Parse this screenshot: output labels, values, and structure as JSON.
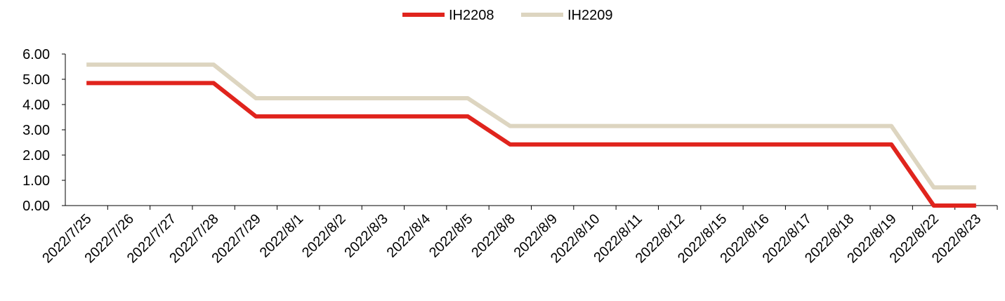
{
  "chart_data": {
    "type": "line",
    "categories": [
      "2022/7/25",
      "2022/7/26",
      "2022/7/27",
      "2022/7/28",
      "2022/7/29",
      "2022/8/1",
      "2022/8/2",
      "2022/8/3",
      "2022/8/4",
      "2022/8/5",
      "2022/8/8",
      "2022/8/9",
      "2022/8/10",
      "2022/8/11",
      "2022/8/12",
      "2022/8/15",
      "2022/8/16",
      "2022/8/17",
      "2022/8/18",
      "2022/8/19",
      "2022/8/22",
      "2022/8/23"
    ],
    "series": [
      {
        "name": "IH2208",
        "color": "#e0241d",
        "values": [
          4.85,
          4.85,
          4.85,
          4.85,
          3.53,
          3.53,
          3.53,
          3.53,
          3.53,
          3.53,
          2.42,
          2.42,
          2.42,
          2.42,
          2.42,
          2.42,
          2.42,
          2.42,
          2.42,
          2.42,
          0,
          0
        ]
      },
      {
        "name": "IH2209",
        "color": "#ddd5c0",
        "values": [
          5.58,
          5.58,
          5.58,
          5.58,
          4.25,
          4.25,
          4.25,
          4.25,
          4.25,
          4.25,
          3.15,
          3.15,
          3.15,
          3.15,
          3.15,
          3.15,
          3.15,
          3.15,
          3.15,
          3.15,
          0.72,
          0.72
        ]
      }
    ],
    "ylim": [
      0,
      6
    ],
    "yticks": [
      {
        "value": 0,
        "label": "0.00"
      },
      {
        "value": 1,
        "label": "1.00"
      },
      {
        "value": 2,
        "label": "2.00"
      },
      {
        "value": 3,
        "label": "3.00"
      },
      {
        "value": 4,
        "label": "4.00"
      },
      {
        "value": 5,
        "label": "5.00"
      },
      {
        "value": 6,
        "label": "6.00"
      }
    ],
    "legend": "top"
  }
}
